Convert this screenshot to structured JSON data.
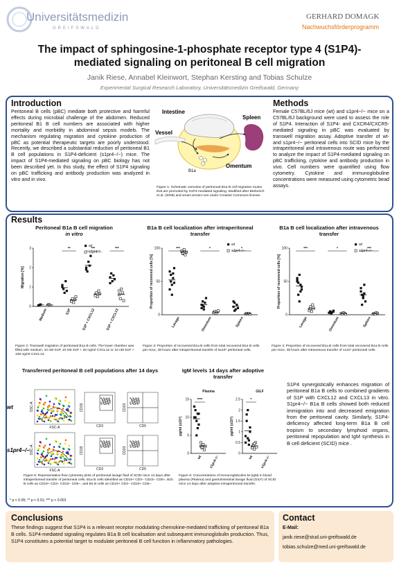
{
  "header": {
    "logo_left_text": "Universitätsmedizin",
    "logo_left_sub": "GREIFSWALD",
    "logo_right_name": "GERHARD DOMAGK",
    "logo_right_program": "Nachwuchsförderprogramm",
    "title_line1": "The impact of sphingosine-1-phosphate receptor type 4 (S1P4)-",
    "title_line2": "mediated signaling on peritoneal B cell migration",
    "authors": "Janik Riese, Annabel Kleinwort, Stephan Kersting and Tobias Schulze",
    "affiliation": "Experimental Surgical Research Laboratory, Universitätsmedizin Greifswald, Germany"
  },
  "introduction": {
    "heading": "Introduction",
    "text": "Peritoneal B cells (pBC) mediate both protective and harmful effects during microbial challenge of the abdomen. Reduced peritoneal B1 B cell numbers are associated with higher mortality and morbidity in abdominal sepsis models. The mechanism regulating migration and cytokine production of pBC as potential therapeutic targets are poorly understood. Recently, we described a substantial reduction of peritoneal B1 B cell populations in S1P4-deficient (s1pr4−/−) mice. The impact of S1P4-mediated signaling on pBC biology has not been described yet. In this study, the effect of S1P4 signaling on pBC trafficking and antibody production was analyzed in vitro and in vivo."
  },
  "figure1": {
    "labels": {
      "intestine": "Intestine",
      "spleen": "Spleen",
      "vessel": "Vessel",
      "omentum": "Omentum",
      "b1a": "B1a"
    },
    "caption": "Figure 1: Schematic overview of peritoneal B1a B cell migration routes that are promoted by S1P4-mediated signaling. Modified after Berberich et al. (2008) and smart.servier.com under Creative Commons license."
  },
  "methods": {
    "heading": "Methods",
    "text": "Female C57BL/6J mice (wt) and s1pr4−/− mice on a C57BL/6J background were used to assess the role of S1P4. Interaction of S1P4- and CXCR4/CXCR5-mediated signaling in pBC was evaluated by transwell migration assay. Adoptive transfer of wt- and s1pr4−/− peritoneal cells into SCID mice by the intraperitoneal and intravenous route was performed to analyze the impact of S1P4-mediated signaling on pBC trafficking, cytokine and antibody production in vivo. Cell numbers were quantified using flow cytometry. Cytokine and immunoglobuline concentrations were measured using cytometric bead assays."
  },
  "results": {
    "heading": "Results",
    "fig2_title": "Peritoneal B1a B cell migration",
    "fig2_subtitle": "in vitro",
    "fig2_caption": "Figure 2: Transwell migration of peritoneal B1a B cells. The lower chamber was filled with medium, 10 nM S1P, 10 nM S1P + 20 ng/ml CXCL12 or 10 nM S1P + 100 ng/ml CXCL13.",
    "fig3_title": "B1a B cell localization after intraperitoneal transfer",
    "fig3_caption": "Figure 3: Proportion of recovered B1a B cells from total recovered B1a B cells per mice, 48 hours after intraperitoneal transfer of 5x10⁵ peritoneal cells.",
    "fig4_title": "B1a B cell localization after intravenous transfer",
    "fig4_caption": "Figure 4: Proportion of recovered B1a B cells from total recovered B1a B cells per mice, 48 hours after intravenous transfer of 1x10⁷ peritoneal cells.",
    "fig5_title": "Transferred peritoneal B cell populations after 14 days",
    "fig5_caption": "Figure 5: Representative flow cytometry plots of peritoneal lavage fluid of SCID mice 14 days after intraperitoneal transfer of peritoneal cells. B1a B cells identified as CD19+ CD3− CD23− CD5+, B1b B cells as CD19+ CD3− CD23− CD5−, and B2 B cells as CD19+ CD3− CD23+ CD5−.",
    "fig5_row_wt": "wt",
    "fig5_row_ko": "s1pr4−/−",
    "fig5_axes": [
      "SSC-A",
      "FSC-A",
      "CD19",
      "CD3",
      "CD23",
      "CD5"
    ],
    "fig6_title": "IgM levels 14 days after adoptive transfer",
    "fig6_caption": "Figure 6: Concentrations of immunoglobuline M (IgM) in blood plasma (Plasma) and gastrointestinal lavage fluid (GILF) of SCID mice 14 days after adoptive intraperitoneal transfer.",
    "summary": "S1P4 synergistically enhances migration of peritoneal B1a B cells to combined gradients of S1P with CXCL12 and CXCL13 in vitro. S1pr4−/− B1a B cells showed both reduced immigration into and decreased emigration from the peritoneal cavity. Similarly, S1P4-deficiency affected long-term B1a B cell tropism to secondary lymphoid organs, peritoneal repopulation and IgM synthesis in B cell deficient (SCID) mice .",
    "significance": "* p < 0.05; ** p < 0.01; *** p < 0.001"
  },
  "conclusions": {
    "heading": "Conclusions",
    "text": "These findings suggest that S1P4 is a relevant receptor modulating chemokine-mediated trafficking of peritoneal B1a B cells. S1P4-mediated signaling regulates B1a B cell localisation and subsequent immunoglobulin production. Thus, S1P4 constitutes a potential target to modulate peritoneal B cell function in inflammatory pathologies."
  },
  "contact": {
    "heading": "Contact",
    "email_label": "E-Mail:",
    "email1": "janik.riese@stud.uni-greifswald.de",
    "email2": "tobias.schulze@med.uni-greifswald.de"
  },
  "chart_data": [
    {
      "type": "scatter",
      "id": "fig2",
      "ylabel": "Migration [%]",
      "ylim": [
        0,
        3
      ],
      "yticks": [
        0,
        1,
        2,
        3
      ],
      "categories": [
        "Medium",
        "S1P",
        "S1P + CXCL12",
        "S1P + CXCL13"
      ],
      "legend": [
        "wt",
        "s1pr4−/−"
      ],
      "significance": [
        "",
        "**",
        "***",
        "***"
      ],
      "series": [
        {
          "name": "wt",
          "values": [
            [
              0.05,
              0.08,
              0.1
            ],
            [
              1.1,
              0.9,
              0.7,
              1.3,
              0.8,
              1.0
            ],
            [
              2.0,
              1.8,
              2.3,
              2.1,
              2.6,
              1.9
            ],
            [
              1.5,
              1.7,
              1.3,
              1.6,
              1.4,
              1.2
            ]
          ]
        },
        {
          "name": "s1pr4−/−",
          "values": [
            [
              0.05,
              0.1,
              0.07
            ],
            [
              0.3,
              0.4,
              0.2,
              0.35,
              0.5,
              0.25
            ],
            [
              0.6,
              0.7,
              0.5,
              0.8,
              0.65,
              0.55
            ],
            [
              0.6,
              0.4,
              0.9,
              0.7,
              0.3,
              0.8
            ]
          ]
        }
      ]
    },
    {
      "type": "scatter",
      "id": "fig3",
      "ylabel": "Proportion of recovered cells [%]",
      "ylim": [
        0,
        100
      ],
      "yticks": [
        0,
        50,
        100
      ],
      "categories": [
        "Lavage",
        "Omentum",
        "Spleen"
      ],
      "legend": [
        "wt",
        "s1pr4−/−"
      ],
      "significance": [
        "***",
        "*",
        "*"
      ],
      "series": [
        {
          "name": "wt",
          "values": [
            [
              65,
              60,
              45,
              55,
              70,
              38,
              50,
              30,
              62,
              48
            ],
            [
              15,
              20,
              12,
              18,
              25,
              10,
              14,
              8
            ],
            [
              12,
              18,
              8,
              15,
              10,
              20,
              6
            ]
          ]
        },
        {
          "name": "s1pr4−/−",
          "values": [
            [
              95,
              92,
              98,
              90,
              94,
              96,
              93
            ],
            [
              3,
              5,
              2,
              4,
              6,
              3
            ],
            [
              1,
              2,
              1,
              2,
              1
            ]
          ]
        }
      ]
    },
    {
      "type": "scatter",
      "id": "fig4",
      "ylabel": "Proportion of recovered cells [%]",
      "ylim": [
        0,
        100
      ],
      "yticks": [
        0,
        50,
        100
      ],
      "categories": [
        "Lavage",
        "Omentum",
        "Spleen"
      ],
      "legend": [
        "wt",
        "s1pr4−/−"
      ],
      "significance": [
        "***",
        "*",
        "***"
      ],
      "series": [
        {
          "name": "wt",
          "values": [
            [
              55,
              48,
              60,
              35,
              42,
              50,
              30,
              20,
              45,
              38,
              52
            ],
            [
              3,
              5,
              2,
              4,
              6,
              3
            ],
            [
              40,
              30,
              25,
              45,
              20,
              35,
              15,
              28,
              32
            ]
          ]
        },
        {
          "name": "s1pr4−/−",
          "values": [
            [
              8,
              12,
              5,
              15,
              10,
              6,
              9
            ],
            [
              2,
              1,
              3,
              2,
              1
            ],
            [
              1,
              2,
              1,
              3,
              2
            ]
          ]
        }
      ]
    },
    {
      "type": "scatter",
      "id": "fig6-plasma",
      "title": "Plasma",
      "ylabel": "pg/ml (x10³)",
      "ylim": [
        0,
        15
      ],
      "yticks": [
        0,
        5,
        10,
        15
      ],
      "categories": [
        "wt",
        "s1pr4−/−"
      ],
      "significance": [
        "****"
      ],
      "series": [
        {
          "name": "wt",
          "values": [
            [
              10,
              12,
              9,
              11,
              8,
              13,
              10,
              5,
              7,
              11
            ]
          ]
        },
        {
          "name": "s1pr4−/−",
          "values": [
            [
              2,
              1.5,
              2.5,
              1,
              2,
              3,
              1.8
            ]
          ]
        }
      ]
    },
    {
      "type": "scatter",
      "id": "fig6-gilf",
      "title": "GILF",
      "ylabel": "pg/ml (x10³)",
      "ylim": [
        0,
        2.5
      ],
      "yticks": [
        0,
        0.5,
        1.0,
        1.5,
        2.0,
        2.5
      ],
      "categories": [
        "wt",
        "s1pr4−/−"
      ],
      "significance": [
        "*"
      ],
      "series": [
        {
          "name": "wt",
          "values": [
            [
              0.8,
              1.5,
              2.0,
              0.6,
              1.2,
              0.5,
              1.8,
              0.7,
              0.4,
              1.0
            ]
          ]
        },
        {
          "name": "s1pr4−/−",
          "values": [
            [
              0.3,
              0.4,
              0.2,
              0.5,
              0.3,
              0.25,
              0.35,
              0.45
            ]
          ]
        }
      ]
    }
  ]
}
